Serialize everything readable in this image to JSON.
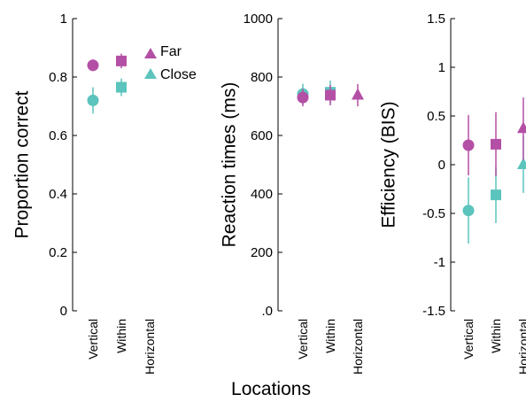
{
  "figure": {
    "xlabel": "Locations",
    "legend": [
      {
        "name": "Far",
        "marker": "triangle",
        "color": "#b44fa6"
      },
      {
        "name": "Close",
        "marker": "triangle",
        "color": "#5bc4bc"
      }
    ]
  },
  "chart_data": [
    {
      "type": "scatter",
      "ylabel": "Proportion correct",
      "ylim": [
        0,
        1
      ],
      "yticks": [
        "0",
        "0.2",
        "0.4",
        "0.6",
        "0.8",
        "1"
      ],
      "categories": [
        "Vertical",
        "Within",
        "Horizontal"
      ],
      "series": [
        {
          "name": "Far",
          "color": "#b44fa6",
          "markers": [
            "circle",
            "square",
            "triangle"
          ],
          "values": [
            0.84,
            0.855,
            null
          ],
          "err": [
            0.02,
            0.025,
            null
          ]
        },
        {
          "name": "Close",
          "color": "#5bc4bc",
          "markers": [
            "circle",
            "square",
            "triangle"
          ],
          "values": [
            0.72,
            0.765,
            null
          ],
          "err": [
            0.045,
            0.03,
            null
          ]
        }
      ]
    },
    {
      "type": "scatter",
      "ylabel": "Reaction times (ms)",
      "ylim": [
        0,
        1000
      ],
      "yticks": [
        ".0",
        "200",
        "400",
        "600",
        "800",
        "1000"
      ],
      "categories": [
        "Vertical",
        "Within",
        "Horizontal"
      ],
      "series": [
        {
          "name": "Far",
          "color": "#b44fa6",
          "markers": [
            "circle",
            "square",
            "triangle"
          ],
          "values": [
            730,
            738,
            738
          ],
          "err": [
            30,
            35,
            38
          ]
        },
        {
          "name": "Close",
          "color": "#5bc4bc",
          "markers": [
            "circle",
            "square",
            "triangle"
          ],
          "values": [
            742,
            748,
            null
          ],
          "err": [
            35,
            40,
            null
          ]
        }
      ]
    },
    {
      "type": "scatter",
      "ylabel": "Efficiency (BIS)",
      "ylim": [
        -1.5,
        1.5
      ],
      "yticks": [
        "-1.5",
        "-1",
        "-0.5",
        "0",
        "0.5",
        "1",
        "1.5"
      ],
      "categories": [
        "Vertical",
        "Within",
        "Horizontal"
      ],
      "series": [
        {
          "name": "Far",
          "color": "#b44fa6",
          "markers": [
            "circle",
            "square",
            "triangle"
          ],
          "values": [
            0.2,
            0.21,
            0.37
          ],
          "err": [
            0.31,
            0.33,
            0.32
          ]
        },
        {
          "name": "Close",
          "color": "#5bc4bc",
          "markers": [
            "circle",
            "square",
            "triangle"
          ],
          "values": [
            -0.47,
            -0.31,
            0.0
          ],
          "err": [
            0.34,
            0.29,
            0.29
          ]
        }
      ]
    }
  ]
}
